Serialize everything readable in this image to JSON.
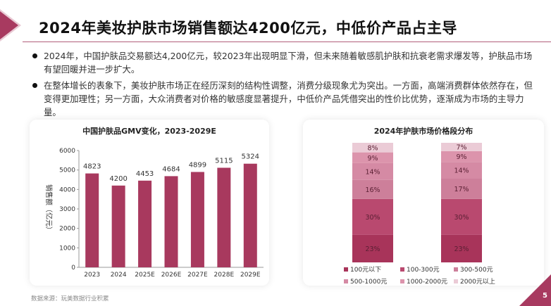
{
  "title": "2024年美妆护肤市场销售额达4200亿元，中低价产品占主导",
  "bullets": [
    "2024年，中国护肤品交易额达4,200亿元，较2023年出现明显下滑，但未来随着敏感肌护肤和抗衰老需求爆发等，护肤品市场有望回暖并进一步扩大。",
    "在整体增长的表象下，美妆护肤市场正在经历深刻的结构性调整，消费分级现象尤为突出。一方面，高端消费群体依然存在，但变得更加理性；另一方面，大众消费者对价格的敏感度显著提升，中低价产品凭借突出的性价比优势，逐渐成为市场的主导力量。"
  ],
  "source": "数据来源：玩美数据行业积累",
  "page_number": "5",
  "colors": {
    "accent": "#a83a60",
    "bar": "#a8395e"
  },
  "chart_data": [
    {
      "type": "bar",
      "title": "中国护肤品GMV变化，2023-2029E",
      "ylabel": "销售额（亿元）",
      "categories": [
        "2023",
        "2024",
        "2025E",
        "2026E",
        "2027E",
        "2028E",
        "2029E"
      ],
      "values": [
        4823,
        4200,
        4453,
        4684,
        4899,
        5115,
        5324
      ],
      "ylim": [
        0,
        6000
      ],
      "yticks": [
        "0",
        "1000",
        "2000",
        "3000",
        "4000",
        "5000",
        "6000"
      ],
      "grid": false
    },
    {
      "type": "bar",
      "stacked": true,
      "title": "2024年护肤市场价格段分布",
      "series": [
        {
          "name": "100元以下",
          "values": [
            23,
            23
          ],
          "color": "#a8345a"
        },
        {
          "name": "100-300元",
          "values": [
            30,
            30
          ],
          "color": "#b9496f"
        },
        {
          "name": "300-500元",
          "values": [
            16,
            17
          ],
          "color": "#cd7f9a"
        },
        {
          "name": "500-1000元",
          "values": [
            14,
            14
          ],
          "color": "#d58aa4"
        },
        {
          "name": "1000-2000元",
          "values": [
            9,
            9
          ],
          "color": "#dc94ac"
        },
        {
          "name": "2000元以上",
          "values": [
            8,
            7
          ],
          "color": "#ebcbd6"
        }
      ],
      "labels": [
        [
          "23%",
          "30%",
          "16%",
          "14%",
          "9%",
          "8%"
        ],
        [
          "23%",
          "30%",
          "17%",
          "14%",
          "9%",
          "7%"
        ]
      ],
      "legend_position": "bottom"
    }
  ]
}
